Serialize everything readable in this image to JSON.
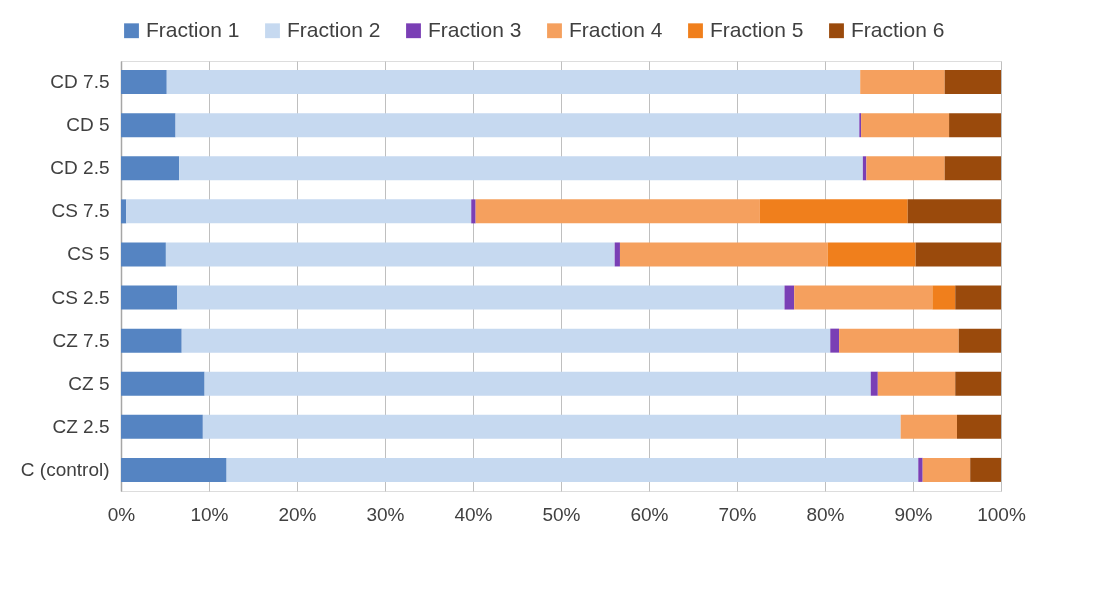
{
  "chart_data": {
    "type": "bar",
    "orientation": "horizontal",
    "stacked": true,
    "categories": [
      "CD 7.5",
      "CD 5",
      "CD 2.5",
      "CS 7.5",
      "CS 5",
      "CS 2.5",
      "CZ 7.5",
      "CZ 5",
      "CZ 2.5",
      "C (control)"
    ],
    "series": [
      {
        "name": "Fraction 1",
        "color": "#5584c2",
        "values": [
          5.2,
          6.2,
          6.6,
          0.6,
          5.1,
          6.4,
          6.9,
          9.5,
          9.3,
          12.0
        ]
      },
      {
        "name": "Fraction 2",
        "color": "#c6d9f0",
        "values": [
          78.8,
          77.7,
          77.7,
          39.2,
          51.0,
          69.0,
          73.7,
          75.7,
          79.3,
          78.6
        ]
      },
      {
        "name": "Fraction 3",
        "color": "#7a3fb5",
        "values": [
          0,
          0.2,
          0.4,
          0.5,
          0.6,
          1.1,
          1.0,
          0.8,
          0,
          0.5
        ]
      },
      {
        "name": "Fraction 4",
        "color": "#f5a05e",
        "values": [
          9.6,
          10.0,
          8.9,
          32.3,
          23.6,
          15.7,
          13.6,
          8.8,
          6.4,
          5.4
        ]
      },
      {
        "name": "Fraction 5",
        "color": "#f07f1c",
        "values": [
          0,
          0,
          0,
          16.8,
          10.0,
          2.6,
          0,
          0,
          0,
          0
        ]
      },
      {
        "name": "Fraction 6",
        "color": "#9a4a0c",
        "values": [
          6.4,
          5.9,
          6.4,
          10.6,
          9.7,
          5.2,
          4.8,
          5.2,
          5.0,
          3.5
        ]
      }
    ],
    "xlim": [
      0,
      100
    ],
    "xticks": [
      {
        "value": 0,
        "label": "0%"
      },
      {
        "value": 10,
        "label": "10%"
      },
      {
        "value": 20,
        "label": "20%"
      },
      {
        "value": 30,
        "label": "30%"
      },
      {
        "value": 40,
        "label": "40%"
      },
      {
        "value": 50,
        "label": "50%"
      },
      {
        "value": 60,
        "label": "60%"
      },
      {
        "value": 70,
        "label": "70%"
      },
      {
        "value": 80,
        "label": "80%"
      },
      {
        "value": 90,
        "label": "90%"
      },
      {
        "value": 100,
        "label": "100%"
      }
    ],
    "grid": "x",
    "legend": "top"
  }
}
